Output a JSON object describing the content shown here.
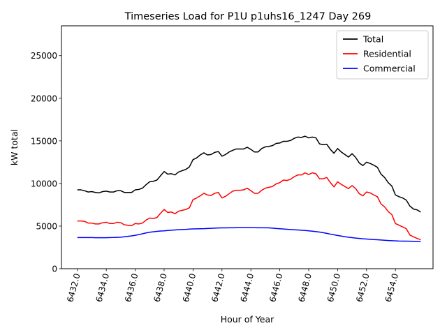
{
  "chart_data": {
    "type": "line",
    "title": "Timeseries Load for P1U p1uhs16_1247  Day 269",
    "xlabel": "Hour of Year",
    "ylabel": "kW total",
    "xlim": [
      6430.9,
      6456.6
    ],
    "ylim": [
      0,
      28500
    ],
    "xticks": [
      6432,
      6434,
      6436,
      6438,
      6440,
      6442,
      6444,
      6446,
      6448,
      6450,
      6452,
      6454
    ],
    "xtick_labels": [
      "6432.0",
      "6434.0",
      "6436.0",
      "6438.0",
      "6440.0",
      "6442.0",
      "6444.0",
      "6446.0",
      "6448.0",
      "6450.0",
      "6452.0",
      "6454.0"
    ],
    "yticks": [
      0,
      5000,
      10000,
      15000,
      20000,
      25000
    ],
    "ytick_labels": [
      "0",
      "5000",
      "10000",
      "15000",
      "20000",
      "25000"
    ],
    "grid": false,
    "legend_position": "upper-right",
    "series": [
      {
        "name": "Total",
        "color": "#000000",
        "x_start": 6432.0,
        "x_step": 0.25,
        "values": [
          9250,
          9250,
          9150,
          9000,
          9050,
          8950,
          8900,
          9050,
          9100,
          9000,
          9000,
          9150,
          9150,
          8950,
          8950,
          8950,
          9250,
          9300,
          9450,
          9850,
          10200,
          10250,
          10400,
          10900,
          11400,
          11100,
          11150,
          11000,
          11350,
          11500,
          11650,
          11950,
          12800,
          13000,
          13350,
          13600,
          13350,
          13400,
          13650,
          13750,
          13200,
          13400,
          13700,
          13900,
          14050,
          14050,
          14050,
          14250,
          14000,
          13700,
          13700,
          14100,
          14300,
          14350,
          14450,
          14700,
          14750,
          14950,
          14950,
          15050,
          15300,
          15450,
          15400,
          15550,
          15350,
          15450,
          15350,
          14650,
          14550,
          14600,
          14000,
          13550,
          14100,
          13700,
          13400,
          13100,
          13500,
          13050,
          12400,
          12100,
          12500,
          12350,
          12150,
          11900,
          11100,
          10700,
          10100,
          9700,
          8650,
          8450,
          8300,
          8050,
          7350,
          7000,
          6900,
          6650
        ]
      },
      {
        "name": "Residential",
        "color": "#ff0000",
        "x_start": 6432.0,
        "x_step": 0.25,
        "values": [
          5600,
          5600,
          5550,
          5350,
          5350,
          5250,
          5250,
          5400,
          5450,
          5300,
          5300,
          5450,
          5400,
          5150,
          5100,
          5050,
          5300,
          5250,
          5350,
          5700,
          5950,
          5900,
          6000,
          6500,
          6950,
          6600,
          6650,
          6450,
          6750,
          6850,
          6950,
          7150,
          8100,
          8300,
          8550,
          8850,
          8650,
          8600,
          8850,
          8950,
          8300,
          8500,
          8800,
          9100,
          9200,
          9200,
          9250,
          9450,
          9150,
          8850,
          8850,
          9200,
          9450,
          9550,
          9650,
          9950,
          10100,
          10400,
          10350,
          10500,
          10800,
          11000,
          11000,
          11250,
          11050,
          11250,
          11150,
          10550,
          10550,
          10700,
          10100,
          9600,
          10200,
          9900,
          9650,
          9400,
          9750,
          9400,
          8800,
          8550,
          9000,
          8900,
          8650,
          8450,
          7600,
          7250,
          6700,
          6350,
          5300,
          5100,
          4900,
          4700,
          3950,
          3750,
          3550,
          3400
        ]
      },
      {
        "name": "Commercial",
        "color": "#0000ff",
        "x_start": 6432.0,
        "x_step": 0.25,
        "values": [
          3650,
          3650,
          3650,
          3650,
          3650,
          3630,
          3630,
          3630,
          3630,
          3650,
          3660,
          3680,
          3700,
          3750,
          3800,
          3850,
          3920,
          4000,
          4100,
          4200,
          4280,
          4330,
          4380,
          4420,
          4440,
          4480,
          4510,
          4540,
          4580,
          4600,
          4620,
          4650,
          4670,
          4680,
          4690,
          4700,
          4720,
          4740,
          4760,
          4780,
          4790,
          4790,
          4800,
          4800,
          4810,
          4820,
          4820,
          4820,
          4820,
          4810,
          4800,
          4800,
          4800,
          4790,
          4760,
          4720,
          4690,
          4660,
          4630,
          4600,
          4570,
          4540,
          4510,
          4480,
          4440,
          4400,
          4350,
          4300,
          4230,
          4150,
          4060,
          3980,
          3900,
          3830,
          3760,
          3700,
          3640,
          3590,
          3550,
          3510,
          3480,
          3450,
          3420,
          3400,
          3370,
          3340,
          3310,
          3290,
          3270,
          3250,
          3240,
          3230,
          3220,
          3210,
          3200,
          3190
        ]
      }
    ]
  }
}
